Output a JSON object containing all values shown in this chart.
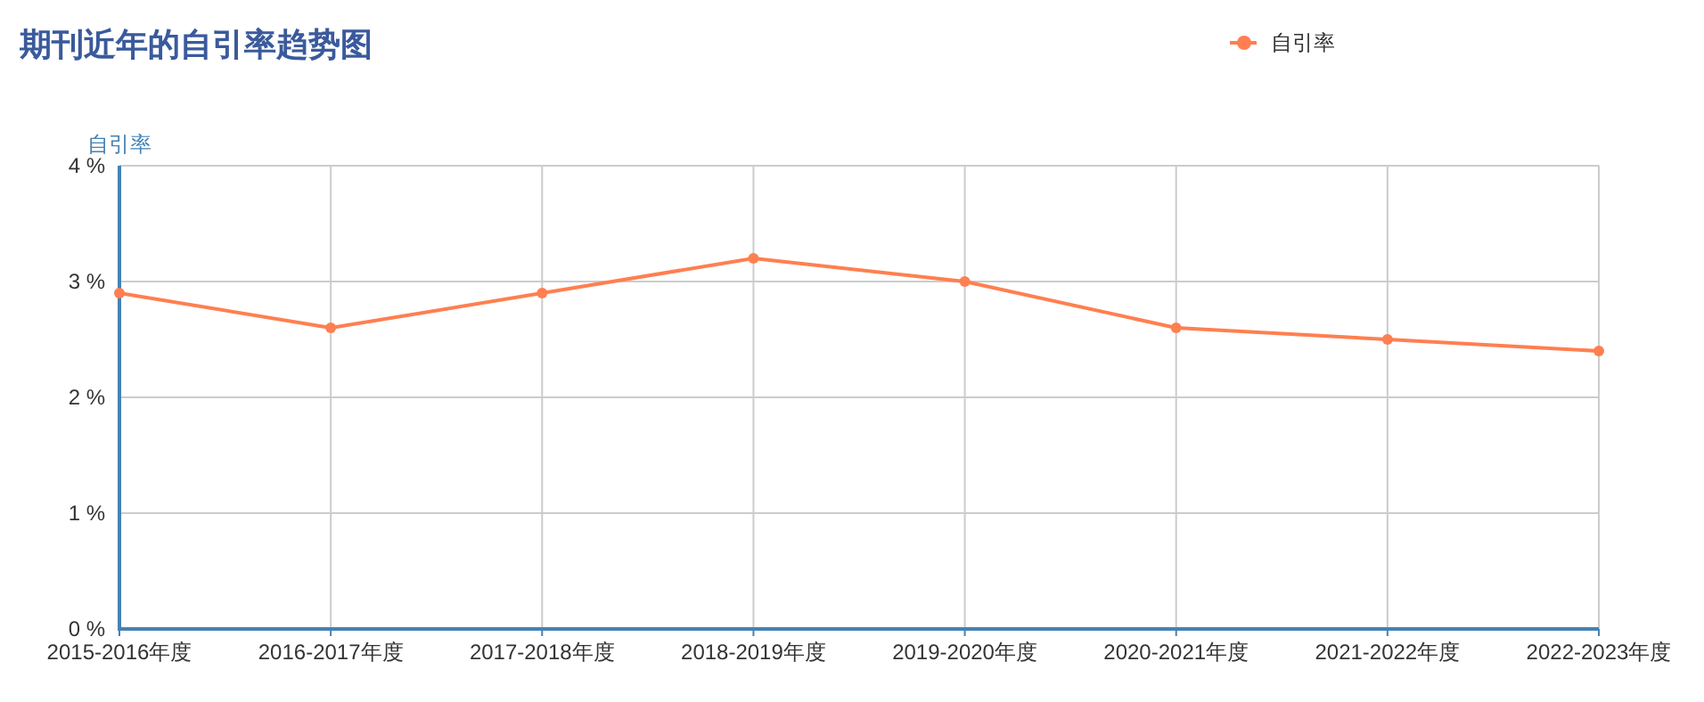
{
  "chart_data": {
    "type": "line",
    "title": "期刊近年的自引率趋势图",
    "ylabel": "自引率",
    "categories": [
      "2015-2016年度",
      "2016-2017年度",
      "2017-2018年度",
      "2018-2019年度",
      "2019-2020年度",
      "2020-2021年度",
      "2021-2022年度",
      "2022-2023年度"
    ],
    "series": [
      {
        "name": "自引率",
        "color": "#ff7f50",
        "values": [
          2.9,
          2.6,
          2.9,
          3.2,
          3.0,
          2.6,
          2.5,
          2.4
        ]
      }
    ],
    "ylim": [
      0,
      4
    ],
    "yticks": [
      {
        "value": 0,
        "label": "0 %"
      },
      {
        "value": 1,
        "label": "1 %"
      },
      {
        "value": 2,
        "label": "2 %"
      },
      {
        "value": 3,
        "label": "3 %"
      },
      {
        "value": 4,
        "label": "4 %"
      }
    ],
    "grid": true,
    "legend": "top",
    "marker": "circle",
    "line_style": "solid"
  }
}
